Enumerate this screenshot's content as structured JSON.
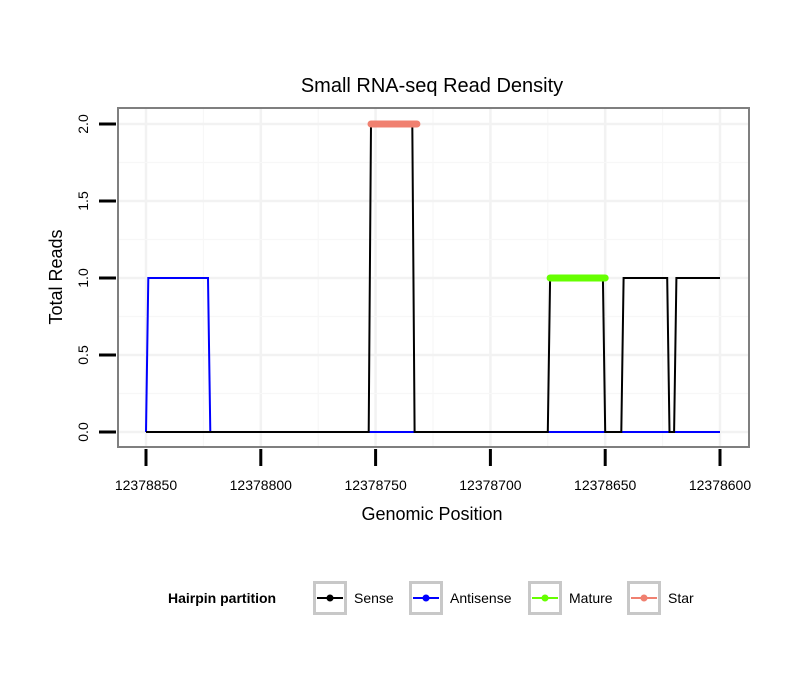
{
  "chart_data": {
    "type": "line",
    "title": "Small RNA-seq Read Density",
    "xlabel": "Genomic Position",
    "ylabel": "Total Reads",
    "x_reversed": true,
    "xlim": [
      12378600,
      12378850
    ],
    "ylim": [
      0,
      2
    ],
    "x_ticks": [
      12378850,
      12378800,
      12378750,
      12378700,
      12378650,
      12378600
    ],
    "x_tick_labels": [
      "12378850",
      "12378800",
      "12378750",
      "12378700",
      "12378650",
      "12378600"
    ],
    "y_ticks": [
      0,
      0.5,
      1,
      1.5,
      2
    ],
    "y_tick_labels": [
      "0.0",
      "0.5",
      "1.0",
      "1.5",
      "2.0"
    ],
    "legend": {
      "title": "Hairpin partition",
      "position": "bottom",
      "entries": [
        {
          "name": "Sense",
          "color": "#000000"
        },
        {
          "name": "Antisense",
          "color": "#0000ff"
        },
        {
          "name": "Mature",
          "color": "#66ff00"
        },
        {
          "name": "Star",
          "color": "#f08070"
        }
      ]
    },
    "series": [
      {
        "name": "Sense",
        "color": "#000000",
        "style": "line",
        "x": [
          12378850,
          12378753,
          12378752,
          12378734,
          12378733,
          12378675,
          12378674,
          12378651,
          12378650,
          12378643,
          12378642,
          12378623,
          12378622,
          12378620,
          12378619,
          12378600
        ],
        "y": [
          0,
          0,
          2,
          2,
          0,
          0,
          1,
          1,
          0,
          0,
          1,
          1,
          0,
          0,
          1,
          1
        ]
      },
      {
        "name": "Antisense",
        "color": "#0000ff",
        "style": "line",
        "x": [
          12378850,
          12378849,
          12378823,
          12378822,
          12378600
        ],
        "y": [
          0,
          1,
          1,
          0,
          0
        ]
      },
      {
        "name": "Mature",
        "color": "#66ff00",
        "style": "band",
        "x": [
          12378674,
          12378650
        ],
        "y": [
          1,
          1
        ]
      },
      {
        "name": "Star",
        "color": "#f08070",
        "style": "band",
        "x": [
          12378752,
          12378732
        ],
        "y": [
          2,
          2
        ]
      }
    ]
  }
}
